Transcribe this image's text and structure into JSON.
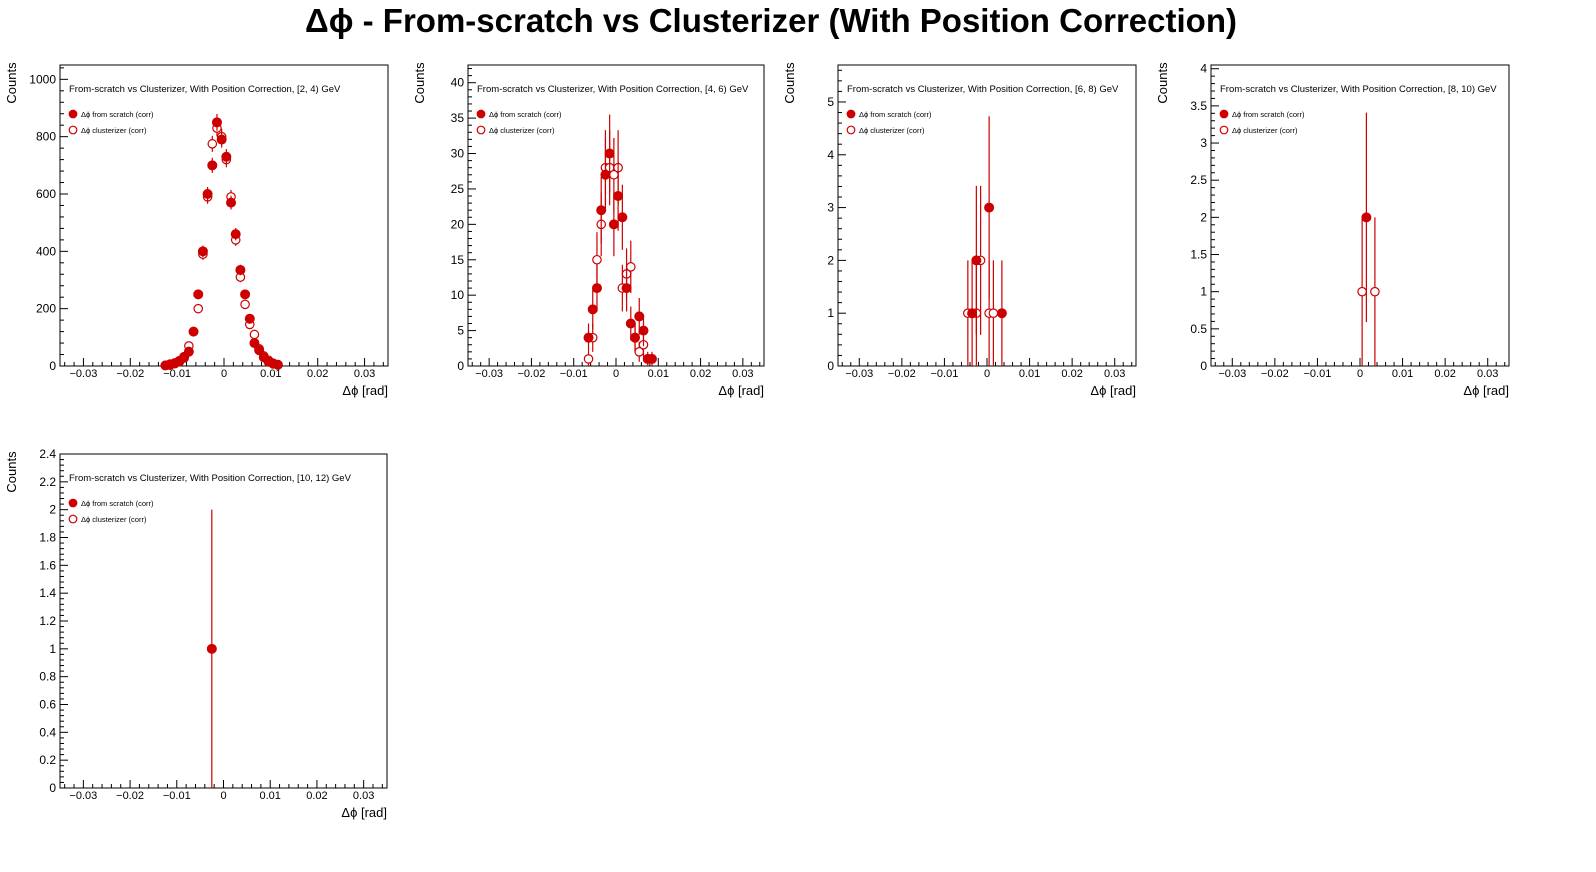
{
  "title": "Δϕ  - From-scratch vs Clusterizer  (With Position Correction)",
  "colors": {
    "marker": "#cc0000",
    "axis": "#000000",
    "background": "#ffffff"
  },
  "chart_data": [
    {
      "type": "scatter",
      "title": "From-scratch vs Clusterizer, With Position Correction, [2, 4) GeV",
      "xlabel": "Δϕ  [rad]",
      "ylabel": "Counts",
      "xlim": [
        -0.035,
        0.035
      ],
      "ylim": [
        0,
        1050
      ],
      "xticks": [
        -0.03,
        -0.02,
        -0.01,
        0,
        0.01,
        0.02,
        0.03
      ],
      "xtick_labels": [
        "−0.03",
        "−0.02",
        "−0.01",
        "0",
        "0.01",
        "0.02",
        "0.03"
      ],
      "yticks": [
        0,
        200,
        400,
        600,
        800,
        1000
      ],
      "ytick_labels": [
        "0",
        "200",
        "400",
        "600",
        "800",
        "1000"
      ],
      "grid": false,
      "legend": "top-left",
      "series": [
        {
          "name": "Δϕ  from scratch (corr)",
          "marker": "filled-circle",
          "x": [
            -0.0125,
            -0.0115,
            -0.0105,
            -0.0095,
            -0.0085,
            -0.0075,
            -0.0065,
            -0.0055,
            -0.0045,
            -0.0035,
            -0.0025,
            -0.0015,
            -0.0005,
            0.0005,
            0.0015,
            0.0025,
            0.0035,
            0.0045,
            0.0055,
            0.0065,
            0.0075,
            0.0085,
            0.0095,
            0.0105,
            0.0115
          ],
          "y": [
            2,
            6,
            10,
            18,
            32,
            50,
            120,
            250,
            400,
            600,
            700,
            850,
            790,
            730,
            570,
            460,
            335,
            250,
            165,
            80,
            55,
            30,
            15,
            8,
            4
          ],
          "yerr": [
            1.4,
            2.4,
            3.2,
            4.2,
            5.7,
            7.1,
            11,
            15.8,
            20,
            24.5,
            26.5,
            29.2,
            28.1,
            27,
            23.9,
            21.4,
            18.3,
            15.8,
            12.8,
            8.9,
            7.4,
            5.5,
            3.9,
            2.8,
            2
          ]
        },
        {
          "name": "Δϕ  clusterizer (corr)",
          "marker": "open-circle",
          "x": [
            -0.0115,
            -0.0105,
            -0.0095,
            -0.0085,
            -0.0075,
            -0.0065,
            -0.0055,
            -0.0045,
            -0.0035,
            -0.0025,
            -0.0015,
            -0.0005,
            0.0005,
            0.0015,
            0.0025,
            0.0035,
            0.0045,
            0.0055,
            0.0065,
            0.0075,
            0.0085,
            0.0095,
            0.0105,
            0.0115
          ],
          "y": [
            3,
            8,
            15,
            28,
            70,
            120,
            200,
            390,
            590,
            775,
            830,
            800,
            720,
            590,
            440,
            310,
            215,
            145,
            110,
            60,
            35,
            20,
            10,
            5
          ],
          "yerr": [
            1.7,
            2.8,
            3.9,
            5.3,
            8.4,
            11,
            14.1,
            19.7,
            24.3,
            27.8,
            28.8,
            28.3,
            26.8,
            24.3,
            21,
            17.6,
            14.7,
            12,
            10.5,
            7.7,
            5.9,
            4.5,
            3.2,
            2.2
          ]
        }
      ]
    },
    {
      "type": "scatter",
      "title": "From-scratch vs Clusterizer, With Position Correction, [4, 6) GeV",
      "xlabel": "Δϕ  [rad]",
      "ylabel": "Counts",
      "xlim": [
        -0.035,
        0.035
      ],
      "ylim": [
        0,
        42.5
      ],
      "xticks": [
        -0.03,
        -0.02,
        -0.01,
        0,
        0.01,
        0.02,
        0.03
      ],
      "xtick_labels": [
        "−0.03",
        "−0.02",
        "−0.01",
        "0",
        "0.01",
        "0.02",
        "0.03"
      ],
      "yticks": [
        0,
        5,
        10,
        15,
        20,
        25,
        30,
        35,
        40
      ],
      "ytick_labels": [
        "0",
        "5",
        "10",
        "15",
        "20",
        "25",
        "30",
        "35",
        "40"
      ],
      "grid": false,
      "legend": "top-left",
      "series": [
        {
          "name": "Δϕ  from scratch (corr)",
          "marker": "filled-circle",
          "x": [
            -0.0065,
            -0.0055,
            -0.0045,
            -0.0035,
            -0.0025,
            -0.0015,
            -0.0005,
            0.0005,
            0.0015,
            0.0025,
            0.0035,
            0.0045,
            0.0055,
            0.0065,
            0.0075,
            0.0085
          ],
          "y": [
            4,
            8,
            11,
            22,
            27,
            30,
            20,
            24,
            21,
            11,
            6,
            4,
            7,
            5,
            1,
            1
          ],
          "yerr": [
            2,
            2.8,
            3.3,
            4.7,
            5.2,
            5.5,
            4.5,
            4.9,
            4.6,
            3.3,
            2.4,
            2,
            2.6,
            2.2,
            1,
            1
          ]
        },
        {
          "name": "Δϕ  clusterizer (corr)",
          "marker": "open-circle",
          "x": [
            -0.0065,
            -0.0055,
            -0.0045,
            -0.0035,
            -0.0025,
            -0.0015,
            -0.0005,
            0.0005,
            0.0015,
            0.0025,
            0.0035,
            0.0045,
            0.0055,
            0.0065
          ],
          "y": [
            1,
            4,
            15,
            20,
            28,
            28,
            27,
            28,
            11,
            13,
            14,
            4,
            2,
            3
          ],
          "yerr": [
            1,
            2,
            3.9,
            4.5,
            5.3,
            5.3,
            5.2,
            5.3,
            3.3,
            3.6,
            3.7,
            2,
            1.4,
            1.7
          ]
        }
      ]
    },
    {
      "type": "scatter",
      "title": "From-scratch vs Clusterizer, With Position Correction, [6, 8) GeV",
      "xlabel": "Δϕ  [rad]",
      "ylabel": "Counts",
      "xlim": [
        -0.035,
        0.035
      ],
      "ylim": [
        0,
        5.7
      ],
      "xticks": [
        -0.03,
        -0.02,
        -0.01,
        0,
        0.01,
        0.02,
        0.03
      ],
      "xtick_labels": [
        "−0.03",
        "−0.02",
        "−0.01",
        "0",
        "0.01",
        "0.02",
        "0.03"
      ],
      "yticks": [
        0,
        1,
        2,
        3,
        4,
        5
      ],
      "ytick_labels": [
        "0",
        "1",
        "2",
        "3",
        "4",
        "5"
      ],
      "grid": false,
      "legend": "top-left",
      "series": [
        {
          "name": "Δϕ  from scratch (corr)",
          "marker": "filled-circle",
          "x": [
            -0.0035,
            -0.0025,
            0.0005,
            0.0035
          ],
          "y": [
            1,
            2,
            3,
            1
          ],
          "yerr": [
            1,
            1.41,
            1.73,
            1
          ]
        },
        {
          "name": "Δϕ  clusterizer (corr)",
          "marker": "open-circle",
          "x": [
            -0.0045,
            -0.0025,
            -0.0015,
            0.0005,
            0.0015
          ],
          "y": [
            1,
            1,
            2,
            1,
            1
          ],
          "yerr": [
            1,
            1,
            1.41,
            1,
            1
          ]
        }
      ]
    },
    {
      "type": "scatter",
      "title": "From-scratch vs Clusterizer, With Position Correction, [8, 10) GeV",
      "xlabel": "Δϕ  [rad]",
      "ylabel": "Counts",
      "xlim": [
        -0.035,
        0.035
      ],
      "ylim": [
        0,
        4.05
      ],
      "xticks": [
        -0.03,
        -0.02,
        -0.01,
        0,
        0.01,
        0.02,
        0.03
      ],
      "xtick_labels": [
        "−0.03",
        "−0.02",
        "−0.01",
        "0",
        "0.01",
        "0.02",
        "0.03"
      ],
      "yticks": [
        0,
        0.5,
        1,
        1.5,
        2,
        2.5,
        3,
        3.5,
        4
      ],
      "ytick_labels": [
        "0",
        "0.5",
        "1",
        "1.5",
        "2",
        "2.5",
        "3",
        "3.5",
        "4"
      ],
      "grid": false,
      "legend": "top-left",
      "series": [
        {
          "name": "Δϕ  from scratch (corr)",
          "marker": "filled-circle",
          "x": [
            0.0015
          ],
          "y": [
            2
          ],
          "yerr": [
            1.41
          ]
        },
        {
          "name": "Δϕ  clusterizer (corr)",
          "marker": "open-circle",
          "x": [
            0.0005,
            0.0035
          ],
          "y": [
            1,
            1
          ],
          "yerr": [
            1,
            1
          ]
        }
      ]
    },
    {
      "type": "scatter",
      "title": "From-scratch vs Clusterizer, With Position Correction, [10, 12) GeV",
      "xlabel": "Δϕ  [rad]",
      "ylabel": "Counts",
      "xlim": [
        -0.035,
        0.035
      ],
      "ylim": [
        0,
        2.4
      ],
      "xticks": [
        -0.03,
        -0.02,
        -0.01,
        0,
        0.01,
        0.02,
        0.03
      ],
      "xtick_labels": [
        "−0.03",
        "−0.02",
        "−0.01",
        "0",
        "0.01",
        "0.02",
        "0.03"
      ],
      "yticks": [
        0,
        0.2,
        0.4,
        0.6,
        0.8,
        1,
        1.2,
        1.4,
        1.6,
        1.8,
        2,
        2.2,
        2.4
      ],
      "ytick_labels": [
        "0",
        "0.2",
        "0.4",
        "0.6",
        "0.8",
        "1",
        "1.2",
        "1.4",
        "1.6",
        "1.8",
        "2",
        "2.2",
        "2.4"
      ],
      "grid": false,
      "legend": "top-left",
      "series": [
        {
          "name": "Δϕ  from scratch (corr)",
          "marker": "filled-circle",
          "x": [
            -0.0025
          ],
          "y": [
            1
          ],
          "yerr": [
            1
          ]
        },
        {
          "name": "Δϕ  clusterizer (corr)",
          "marker": "open-circle",
          "x": [],
          "y": [],
          "yerr": []
        }
      ]
    }
  ]
}
